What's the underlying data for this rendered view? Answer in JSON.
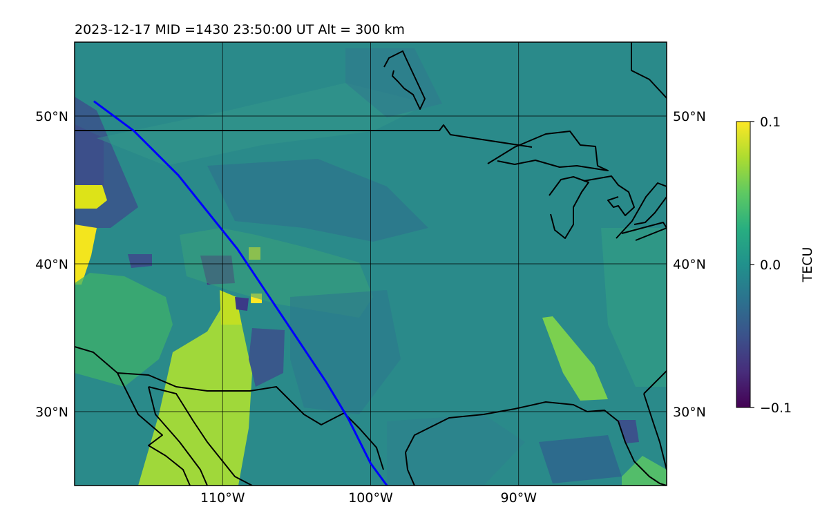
{
  "title": "2023-12-17  MID =1430    23:50:00  UT  Alt = 300 km",
  "map": {
    "lon_range_deg": [
      -120,
      -80
    ],
    "lat_range_deg": [
      25,
      55
    ],
    "lon_ticks": [
      {
        "value": -110,
        "label": "110°W"
      },
      {
        "value": -100,
        "label": "100°W"
      },
      {
        "value": -90,
        "label": "90°W"
      }
    ],
    "lat_ticks": [
      {
        "value": 50,
        "label": "50°N"
      },
      {
        "value": 40,
        "label": "40°N"
      },
      {
        "value": 30,
        "label": "30°N"
      }
    ],
    "gridlines": true,
    "background_color": "#2a8a8a",
    "track_color": "#0000ff",
    "coastline_color": "#000000"
  },
  "colorbar": {
    "label": "TECU",
    "min": -0.1,
    "max": 0.1,
    "ticks": [
      {
        "value": 0.1,
        "label": "0.1"
      },
      {
        "value": 0.0,
        "label": "0.0"
      },
      {
        "value": -0.1,
        "label": "−0.1"
      }
    ],
    "colormap": "viridis"
  },
  "satellite_track": {
    "points": [
      [
        -118.7,
        51.0
      ],
      [
        -116.0,
        49.0
      ],
      [
        -113.0,
        46.0
      ],
      [
        -111.0,
        43.5
      ],
      [
        -109.0,
        41.0
      ],
      [
        -107.0,
        38.0
      ],
      [
        -105.0,
        35.0
      ],
      [
        -103.0,
        32.0
      ],
      [
        -101.5,
        29.5
      ],
      [
        -100.0,
        26.5
      ],
      [
        -98.9,
        25.0
      ]
    ]
  }
}
